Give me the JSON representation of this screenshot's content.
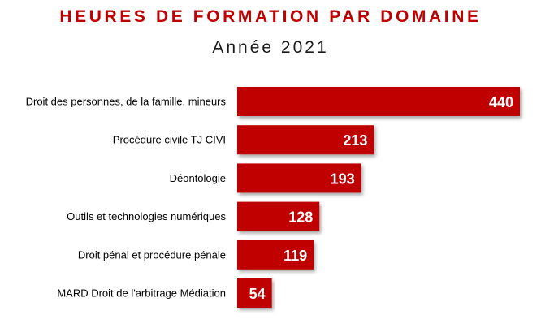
{
  "chart_data": {
    "type": "bar",
    "orientation": "horizontal",
    "title": "HEURES DE FORMATION PAR DOMAINE",
    "subtitle": "Année 2021",
    "categories": [
      "Droit des personnes, de la famille, mineurs",
      "Procédure civile TJ CIVI",
      "Déontologie",
      "Outils et technologies numériques",
      "Droit pénal et procédure pénale",
      "MARD Droit de l'arbitrage Médiation"
    ],
    "values": [
      440,
      213,
      193,
      128,
      119,
      54
    ],
    "data_labels": [
      "440",
      "213",
      "193",
      "128",
      "119",
      "54"
    ],
    "xlim": [
      0,
      440
    ],
    "grid": false,
    "legend": "none",
    "bar_color": "#c00000",
    "title_color": "#c00000"
  }
}
